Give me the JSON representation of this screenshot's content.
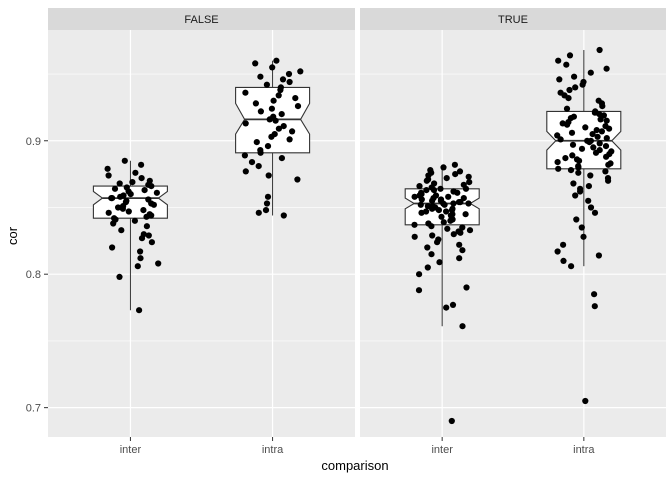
{
  "chart_data": {
    "type": "boxplot",
    "xlabel": "comparison",
    "ylabel": "cor",
    "ylim": [
      0.678,
      0.983
    ],
    "y_ticks": [
      0.7,
      0.8,
      0.9
    ],
    "y_tick_labels": [
      "0.7",
      "0.8",
      "0.9"
    ],
    "categories": [
      "inter",
      "intra"
    ],
    "grid": true,
    "notched": true,
    "colors": {
      "panel_bg": "#ebebeb",
      "grid_major": "#ffffff",
      "strip_bg": "#d9d9d9",
      "box_fill": "#ffffff",
      "box_line": "#333333",
      "point": "#000000",
      "tick_text": "#4d4d4d"
    },
    "facets": [
      {
        "label": "FALSE",
        "groups": [
          {
            "category": "inter",
            "box": {
              "min": 0.773,
              "q1": 0.842,
              "median": 0.857,
              "q3": 0.866,
              "max": 0.885,
              "notch_low": 0.852,
              "notch_high": 0.862
            },
            "points": [
              0.773,
              0.798,
              0.806,
              0.808,
              0.812,
              0.817,
              0.82,
              0.824,
              0.827,
              0.829,
              0.83,
              0.833,
              0.836,
              0.838,
              0.84,
              0.841,
              0.842,
              0.843,
              0.844,
              0.845,
              0.846,
              0.847,
              0.848,
              0.849,
              0.85,
              0.851,
              0.852,
              0.853,
              0.854,
              0.855,
              0.856,
              0.857,
              0.857,
              0.858,
              0.859,
              0.86,
              0.861,
              0.862,
              0.863,
              0.864,
              0.865,
              0.866,
              0.867,
              0.868,
              0.869,
              0.87,
              0.872,
              0.874,
              0.876,
              0.879,
              0.882,
              0.885
            ]
          },
          {
            "category": "intra",
            "box": {
              "min": 0.844,
              "q1": 0.891,
              "median": 0.916,
              "q3": 0.94,
              "max": 0.96,
              "notch_low": 0.905,
              "notch_high": 0.928
            },
            "points": [
              0.844,
              0.846,
              0.848,
              0.853,
              0.858,
              0.871,
              0.874,
              0.877,
              0.881,
              0.884,
              0.887,
              0.889,
              0.891,
              0.893,
              0.896,
              0.899,
              0.901,
              0.903,
              0.905,
              0.907,
              0.909,
              0.911,
              0.913,
              0.915,
              0.916,
              0.918,
              0.92,
              0.922,
              0.924,
              0.926,
              0.928,
              0.93,
              0.932,
              0.934,
              0.936,
              0.938,
              0.94,
              0.942,
              0.944,
              0.946,
              0.948,
              0.95,
              0.952,
              0.955,
              0.958,
              0.96
            ]
          }
        ]
      },
      {
        "label": "TRUE",
        "groups": [
          {
            "category": "inter",
            "box": {
              "min": 0.761,
              "q1": 0.837,
              "median": 0.853,
              "q3": 0.864,
              "max": 0.882,
              "notch_low": 0.849,
              "notch_high": 0.857
            },
            "points": [
              0.69,
              0.761,
              0.775,
              0.777,
              0.788,
              0.79,
              0.8,
              0.805,
              0.809,
              0.812,
              0.815,
              0.818,
              0.82,
              0.822,
              0.824,
              0.826,
              0.828,
              0.829,
              0.83,
              0.831,
              0.832,
              0.833,
              0.834,
              0.835,
              0.836,
              0.837,
              0.838,
              0.839,
              0.84,
              0.841,
              0.842,
              0.843,
              0.844,
              0.845,
              0.845,
              0.846,
              0.847,
              0.847,
              0.848,
              0.848,
              0.849,
              0.849,
              0.85,
              0.85,
              0.851,
              0.851,
              0.852,
              0.852,
              0.853,
              0.853,
              0.853,
              0.854,
              0.854,
              0.855,
              0.855,
              0.856,
              0.856,
              0.857,
              0.857,
              0.858,
              0.858,
              0.859,
              0.859,
              0.86,
              0.86,
              0.861,
              0.861,
              0.862,
              0.862,
              0.863,
              0.863,
              0.864,
              0.864,
              0.865,
              0.866,
              0.867,
              0.868,
              0.869,
              0.87,
              0.871,
              0.872,
              0.873,
              0.874,
              0.875,
              0.876,
              0.877,
              0.878,
              0.88,
              0.882
            ]
          },
          {
            "category": "intra",
            "box": {
              "min": 0.806,
              "q1": 0.879,
              "median": 0.9,
              "q3": 0.922,
              "max": 0.968,
              "notch_low": 0.893,
              "notch_high": 0.907
            },
            "points": [
              0.705,
              0.776,
              0.785,
              0.806,
              0.81,
              0.814,
              0.817,
              0.822,
              0.828,
              0.835,
              0.841,
              0.846,
              0.85,
              0.855,
              0.859,
              0.862,
              0.864,
              0.866,
              0.868,
              0.87,
              0.872,
              0.874,
              0.876,
              0.877,
              0.878,
              0.879,
              0.88,
              0.881,
              0.882,
              0.883,
              0.884,
              0.885,
              0.886,
              0.887,
              0.888,
              0.889,
              0.89,
              0.891,
              0.892,
              0.893,
              0.894,
              0.895,
              0.896,
              0.897,
              0.898,
              0.899,
              0.9,
              0.9,
              0.901,
              0.902,
              0.903,
              0.904,
              0.905,
              0.906,
              0.907,
              0.908,
              0.909,
              0.91,
              0.911,
              0.912,
              0.913,
              0.914,
              0.915,
              0.916,
              0.917,
              0.918,
              0.919,
              0.92,
              0.921,
              0.922,
              0.924,
              0.926,
              0.928,
              0.93,
              0.932,
              0.934,
              0.936,
              0.938,
              0.94,
              0.942,
              0.944,
              0.946,
              0.948,
              0.951,
              0.954,
              0.957,
              0.96,
              0.964,
              0.968
            ]
          }
        ]
      }
    ]
  }
}
